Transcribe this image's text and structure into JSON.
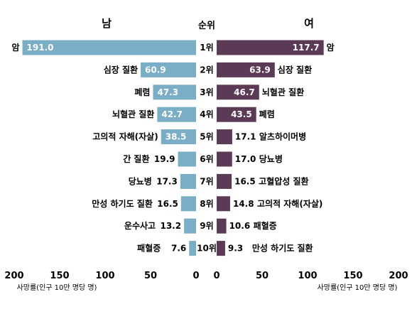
{
  "chart_data": {
    "type": "bar",
    "left_header": "남",
    "right_header": "여",
    "rank_header": "순위",
    "ranks": [
      "1위",
      "2위",
      "3위",
      "4위",
      "5위",
      "6위",
      "7위",
      "8위",
      "9위",
      "10위"
    ],
    "series": [
      {
        "name": "남",
        "color": "#7aaec7",
        "labels": [
          "암",
          "심장 질환",
          "폐렴",
          "뇌혈관 질환",
          "고의적 자해(자살)",
          "간 질환",
          "당뇨병",
          "만성 하기도 질환",
          "운수사고",
          "패혈증"
        ],
        "values": [
          191.0,
          60.9,
          47.3,
          42.7,
          38.5,
          19.9,
          17.3,
          16.5,
          13.2,
          7.6
        ],
        "value_labels": [
          "191.0",
          "60.9",
          "47.3",
          "42.7",
          "38.5",
          "19.9",
          "17.3",
          "16.5",
          "13.2",
          "7.6"
        ]
      },
      {
        "name": "여",
        "color": "#5b3a55",
        "labels": [
          "암",
          "심장 질환",
          "뇌혈관 질환",
          "폐렴",
          "알츠하이머병",
          "당뇨병",
          "고혈압성 질환",
          "고의적 자해(자살)",
          "패혈증",
          "만성 하기도 질환"
        ],
        "values": [
          117.7,
          63.9,
          46.7,
          43.5,
          17.1,
          17.0,
          16.5,
          14.8,
          10.6,
          9.3
        ],
        "value_labels": [
          "117.7",
          "63.9",
          "46.7",
          "43.5",
          "17.1",
          "17.0",
          "16.5",
          "14.8",
          "10.6",
          "9.3"
        ]
      }
    ],
    "xlim": [
      0,
      200
    ],
    "x_ticks": [
      200,
      150,
      100,
      50,
      0
    ],
    "x_ticks_right": [
      0,
      50,
      100,
      150,
      200
    ],
    "xlabel": "사망률(인구 10만 명당 명)"
  }
}
